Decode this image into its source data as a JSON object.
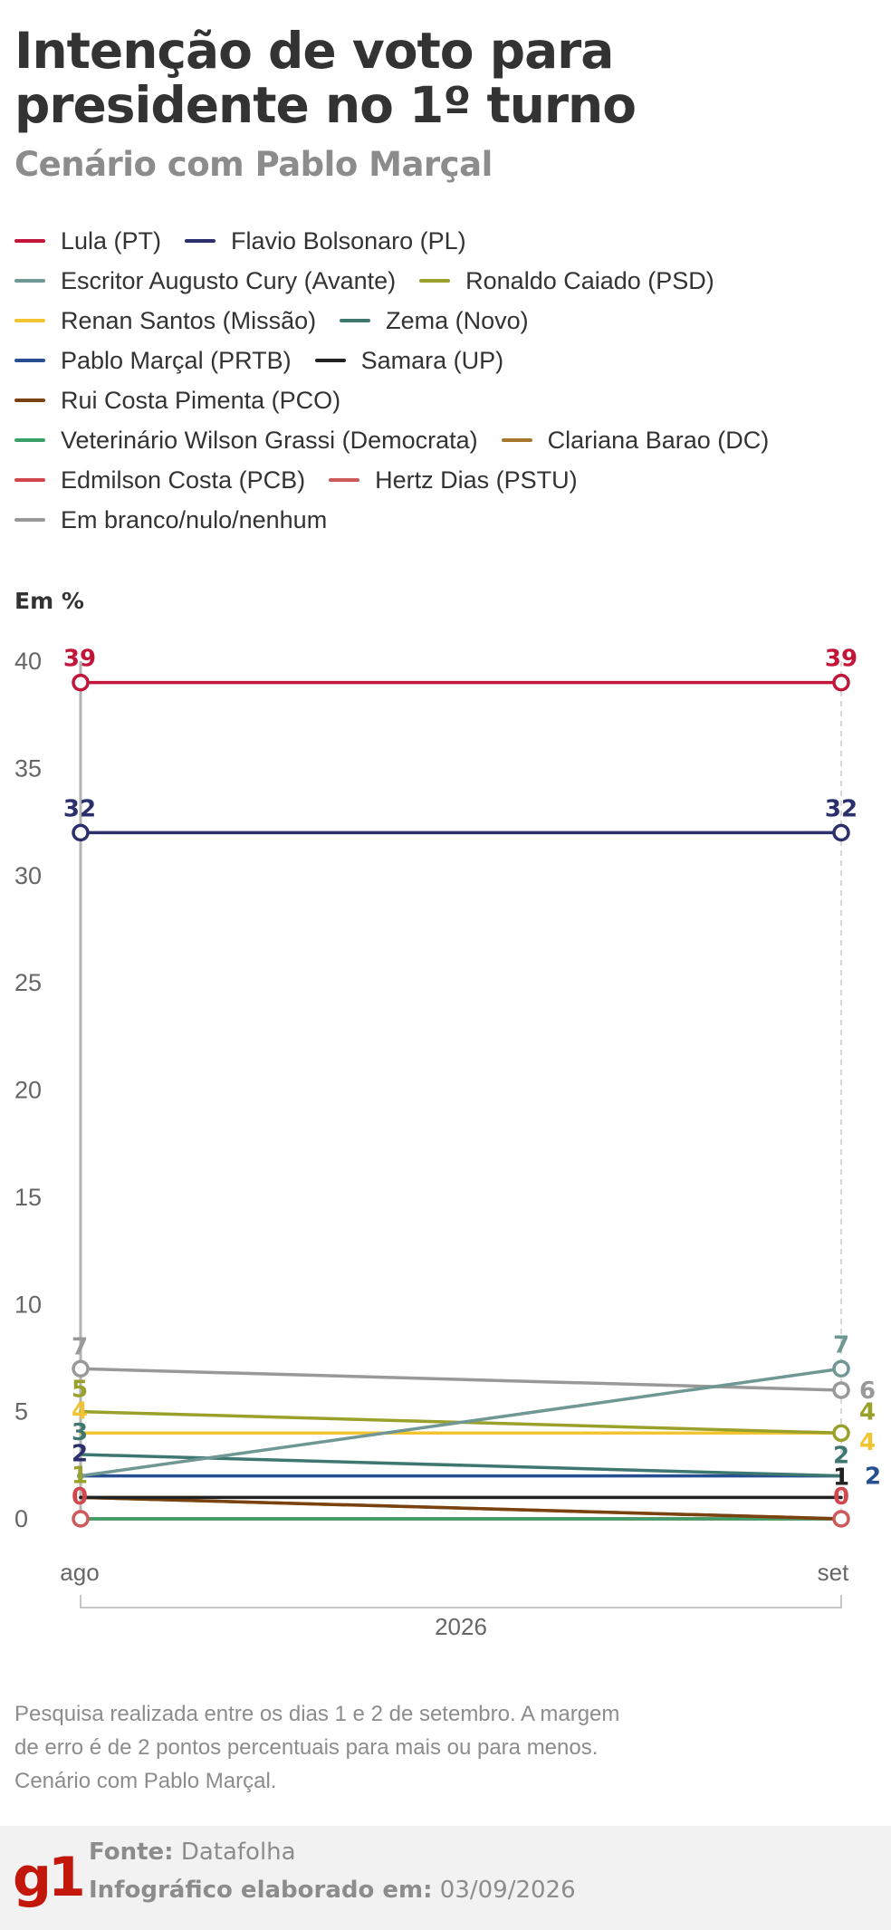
{
  "title": "Intenção de voto para presidente no 1º turno",
  "subtitle": "Cenário com Pablo Marçal",
  "chart_data": {
    "type": "line",
    "unit_label": "Em %",
    "x": [
      "ago",
      "set"
    ],
    "x_group_label": "2026",
    "ylim": [
      0,
      40
    ],
    "yticks": [
      0,
      5,
      10,
      15,
      20,
      25,
      30,
      35,
      40
    ],
    "series": [
      {
        "name": "Lula (PT)",
        "color": "#c1163a",
        "values": [
          39,
          39
        ]
      },
      {
        "name": "Flavio Bolsonaro (PL)",
        "color": "#2b2f6b",
        "values": [
          32,
          32
        ]
      },
      {
        "name": "Escritor Augusto Cury (Avante)",
        "color": "#6f9894",
        "values": [
          2,
          7
        ]
      },
      {
        "name": "Ronaldo Caiado (PSD)",
        "color": "#9aa12b",
        "values": [
          5,
          4
        ]
      },
      {
        "name": "Renan Santos (Missão)",
        "color": "#f3c431",
        "values": [
          4,
          4
        ]
      },
      {
        "name": "Zema (Novo)",
        "color": "#3e7770",
        "values": [
          3,
          2
        ]
      },
      {
        "name": "Pablo Marçal (PRTB)",
        "color": "#264f91",
        "values": [
          2,
          2
        ]
      },
      {
        "name": "Samara (UP)",
        "color": "#222222",
        "values": [
          1,
          1
        ]
      },
      {
        "name": "Rui Costa Pimenta (PCO)",
        "color": "#7a4210",
        "values": [
          1,
          0
        ]
      },
      {
        "name": "Veterinário Wilson Grassi (Democrata)",
        "color": "#3aa067",
        "values": [
          0,
          0
        ]
      },
      {
        "name": "Clariana Barao (DC)",
        "color": "#a5782d",
        "values": [
          1,
          0
        ]
      },
      {
        "name": "Edmilson Costa (PCB)",
        "color": "#d2474d",
        "values": [
          0,
          0
        ]
      },
      {
        "name": "Hertz Dias (PSTU)",
        "color": "#cc5a5a",
        "values": [
          0,
          0
        ]
      },
      {
        "name": "Em branco/nulo/nenhum",
        "color": "#999999",
        "values": [
          7,
          6
        ]
      }
    ],
    "start_labels": [
      {
        "text": "39",
        "value": 39,
        "color": "#c1163a"
      },
      {
        "text": "32",
        "value": 32,
        "color": "#2b2f6b"
      },
      {
        "text": "7",
        "value": 7,
        "color": "#999999"
      },
      {
        "text": "5",
        "value": 5,
        "color": "#9aa12b"
      },
      {
        "text": "4",
        "value": 4,
        "color": "#f3c431"
      },
      {
        "text": "3",
        "value": 3,
        "color": "#3e7770"
      },
      {
        "text": "2",
        "value": 2,
        "color": "#2b2f6b"
      },
      {
        "text": "1",
        "value": 1,
        "color": "#9aa12b"
      },
      {
        "text": "0",
        "value": 0,
        "color": "#d2474d"
      }
    ],
    "end_labels": [
      {
        "text": "39",
        "value": 39,
        "color": "#c1163a"
      },
      {
        "text": "32",
        "value": 32,
        "color": "#2b2f6b"
      },
      {
        "text": "7",
        "value": 7,
        "color": "#6f9894"
      },
      {
        "text": "6",
        "value": 6,
        "color": "#999999"
      },
      {
        "text": "4",
        "value": 4,
        "color": "#9aa12b"
      },
      {
        "text": "4",
        "value": 4,
        "color": "#f3c431"
      },
      {
        "text": "2",
        "value": 2,
        "color": "#3e7770"
      },
      {
        "text": "1",
        "value": 1,
        "color": "#222222"
      },
      {
        "text": "2",
        "value": 2,
        "color": "#264f91"
      },
      {
        "text": "0",
        "value": 0,
        "color": "#d2474d"
      }
    ]
  },
  "note": "Pesquisa realizada entre os dias 1 e 2 de setembro. A margem de erro é de 2 pontos percentuais para mais ou para menos. Cenário com Pablo Marçal.",
  "footer": {
    "logo": "g1",
    "source_label": "Fonte:",
    "source_value": "Datafolha",
    "date_label": "Infográfico elaborado em:",
    "date_value": "03/09/2026"
  }
}
